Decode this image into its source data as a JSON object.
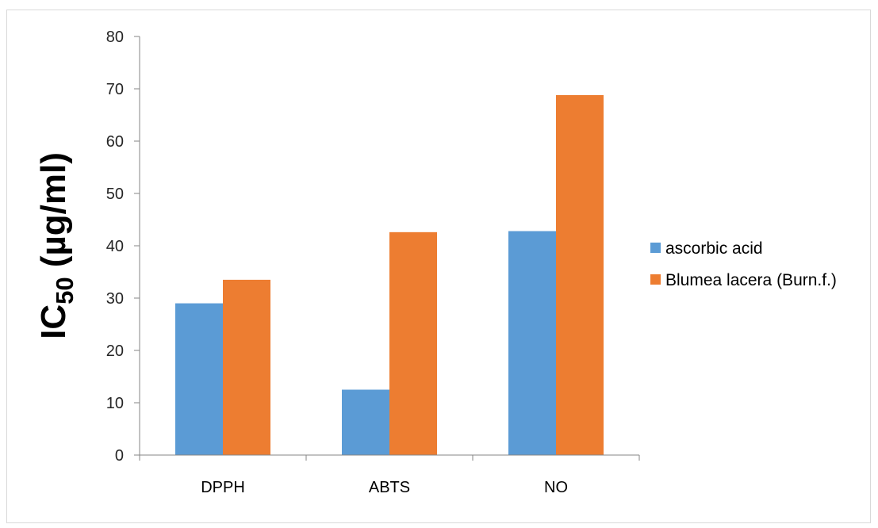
{
  "chart_data": {
    "type": "bar",
    "categories": [
      "DPPH",
      "ABTS",
      "NO"
    ],
    "series": [
      {
        "name": "ascorbic acid",
        "values": [
          29,
          12.5,
          42.8
        ],
        "color": "#5b9bd5"
      },
      {
        "name": "Blumea lacera (Burn.f.)",
        "values": [
          33.5,
          42.6,
          68.8
        ],
        "color": "#ed7d31"
      }
    ],
    "ylabel": {
      "main": "IC",
      "sub": "50",
      "rest": " (µg/ml)"
    },
    "ylim": [
      0,
      80
    ],
    "yticks": [
      0,
      10,
      20,
      30,
      40,
      50,
      60,
      70,
      80
    ],
    "grid": false,
    "legend_position": "right"
  }
}
